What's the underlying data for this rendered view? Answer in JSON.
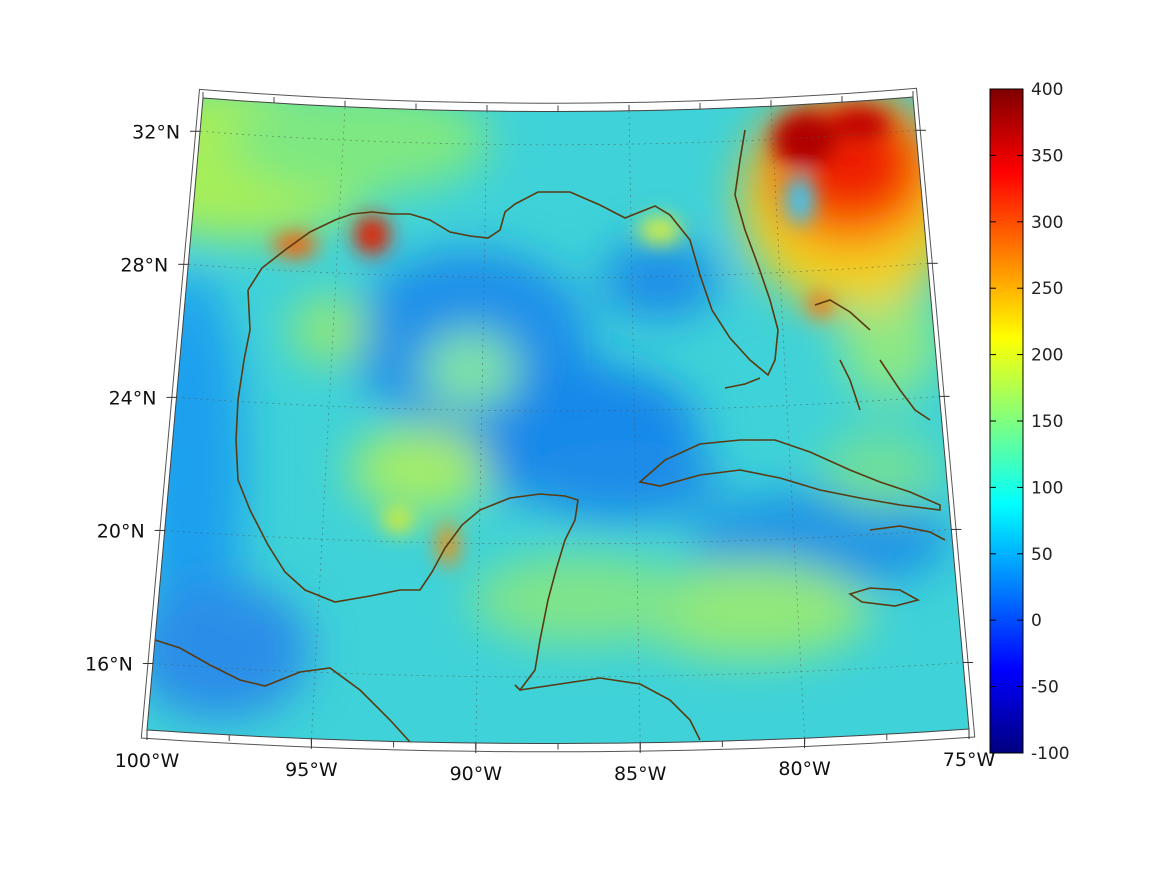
{
  "map": {
    "lon_range": [
      -100,
      -75
    ],
    "lat_range": [
      14,
      33
    ],
    "projection": "conic",
    "grid": true,
    "lon_ticks": [
      {
        "value": -100,
        "label": "100°W"
      },
      {
        "value": -95,
        "label": "95°W"
      },
      {
        "value": -90,
        "label": "90°W"
      },
      {
        "value": -85,
        "label": "85°W"
      },
      {
        "value": -80,
        "label": "80°W"
      },
      {
        "value": -75,
        "label": "75°W"
      }
    ],
    "lat_ticks": [
      {
        "value": 32,
        "label": "32°N"
      },
      {
        "value": 28,
        "label": "28°N"
      },
      {
        "value": 24,
        "label": "24°N"
      },
      {
        "value": 20,
        "label": "20°N"
      },
      {
        "value": 16,
        "label": "16°N"
      }
    ],
    "coastline_color": "#5a3a10",
    "colormap": "jet"
  },
  "colorbar": {
    "min": -100,
    "max": 400,
    "ticks": [
      "400",
      "350",
      "300",
      "250",
      "200",
      "150",
      "100",
      "50",
      "0",
      "-50",
      "-100"
    ]
  }
}
